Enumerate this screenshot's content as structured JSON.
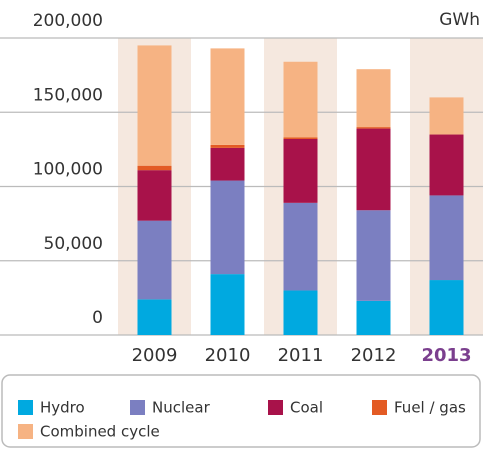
{
  "chart_data": {
    "type": "stacked_bar",
    "unit": "GWh",
    "categories": [
      "2009",
      "2010",
      "2011",
      "2012",
      "2013"
    ],
    "series": [
      {
        "name": "Hydro",
        "color": "#00a9e0",
        "values": [
          24000,
          41000,
          30000,
          23000,
          37000
        ]
      },
      {
        "name": "Nuclear",
        "color": "#7b7fc1",
        "values": [
          53000,
          63000,
          59000,
          61000,
          57000
        ]
      },
      {
        "name": "Coal",
        "color": "#a8124a",
        "values": [
          34000,
          22000,
          43000,
          55000,
          41000
        ]
      },
      {
        "name": "Fuel / gas",
        "color": "#e35b24",
        "values": [
          3000,
          2000,
          1000,
          1000,
          0
        ]
      },
      {
        "name": "Combined cycle",
        "color": "#f6b383",
        "values": [
          81000,
          65000,
          51000,
          39000,
          25000
        ]
      }
    ],
    "ylim": [
      0,
      200000
    ],
    "yticks": [
      0,
      {
        "value": 50000,
        "label": "50,000"
      },
      {
        "value": 100000,
        "label": "100,000"
      },
      {
        "value": 150000,
        "label": "150,000"
      },
      {
        "value": 200000,
        "label": "200,000"
      }
    ],
    "grid": true,
    "stripe_color": "#f5e8df",
    "highlight": {
      "index": 4,
      "color": "#7b3f8e"
    }
  }
}
